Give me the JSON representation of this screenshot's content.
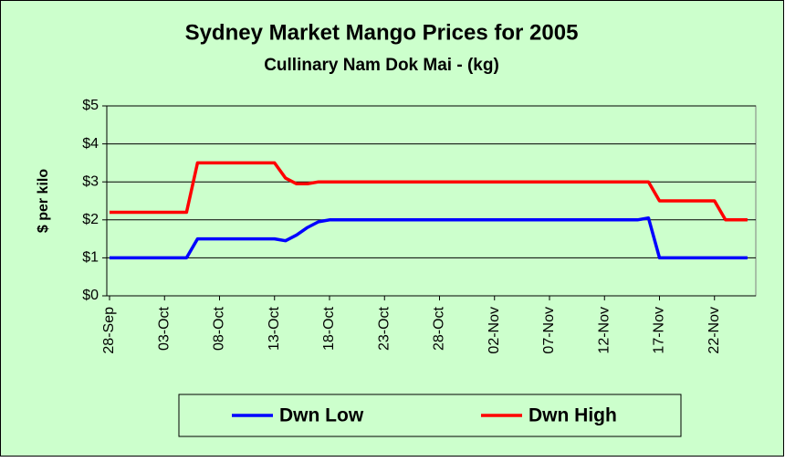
{
  "chart_data": {
    "type": "line",
    "title": "Sydney Market Mango Prices for 2005",
    "subtitle": "Cullinary Nam Dok Mai - (kg)",
    "y_label": "$ per kilo",
    "categories": [
      "28-Sep",
      null,
      null,
      null,
      null,
      "03-Oct",
      null,
      null,
      null,
      null,
      "08-Oct",
      null,
      null,
      null,
      null,
      "13-Oct",
      null,
      null,
      null,
      null,
      "18-Oct",
      null,
      null,
      null,
      null,
      "23-Oct",
      null,
      null,
      null,
      null,
      "28-Oct",
      null,
      null,
      null,
      null,
      "02-Nov",
      null,
      null,
      null,
      null,
      "07-Nov",
      null,
      null,
      null,
      null,
      "12-Nov",
      null,
      null,
      null,
      null,
      "17-Nov",
      null,
      null,
      null,
      null,
      "22-Nov",
      null,
      null,
      null
    ],
    "series": [
      {
        "name": "Dwn Low",
        "color": "#0000ff",
        "values": [
          1,
          1,
          1,
          1,
          1,
          1,
          1,
          1,
          1.5,
          1.5,
          1.5,
          1.5,
          1.5,
          1.5,
          1.5,
          1.5,
          1.45,
          1.6,
          1.8,
          1.95,
          2,
          2,
          2,
          2,
          2,
          2,
          2,
          2,
          2,
          2,
          2,
          2,
          2,
          2,
          2,
          2,
          2,
          2,
          2,
          2,
          2,
          2,
          2,
          2,
          2,
          2,
          2,
          2,
          2,
          2.05,
          1,
          1,
          1,
          1,
          1,
          1,
          1,
          1,
          1
        ]
      },
      {
        "name": "Dwn High",
        "color": "#ff0000",
        "values": [
          2.2,
          2.2,
          2.2,
          2.2,
          2.2,
          2.2,
          2.2,
          2.2,
          3.5,
          3.5,
          3.5,
          3.5,
          3.5,
          3.5,
          3.5,
          3.5,
          3.1,
          2.95,
          2.95,
          3,
          3,
          3,
          3,
          3,
          3,
          3,
          3,
          3,
          3,
          3,
          3,
          3,
          3,
          3,
          3,
          3,
          3,
          3,
          3,
          3,
          3,
          3,
          3,
          3,
          3,
          3,
          3,
          3,
          3,
          3,
          2.5,
          2.5,
          2.5,
          2.5,
          2.5,
          2.5,
          2,
          2,
          2
        ]
      }
    ],
    "ylim": [
      0,
      5
    ],
    "yticks": [
      {
        "value": 0,
        "label": "$0"
      },
      {
        "value": 1,
        "label": "$1"
      },
      {
        "value": 2,
        "label": "$2"
      },
      {
        "value": 3,
        "label": "$3"
      },
      {
        "value": 4,
        "label": "$4"
      },
      {
        "value": 5,
        "label": "$5"
      }
    ],
    "grid": true,
    "legend": "bottom"
  }
}
